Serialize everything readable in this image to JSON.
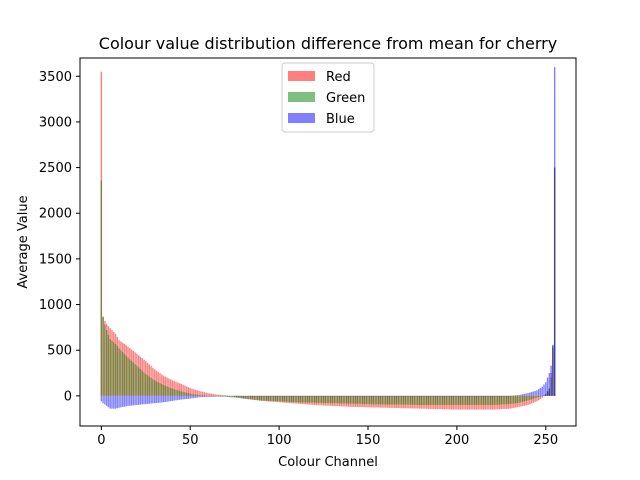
{
  "chart_data": {
    "type": "bar",
    "title": "Colour value distribution difference from mean for cherry",
    "xlabel": "Colour Channel",
    "ylabel": "Average Value",
    "xlim": [
      -12,
      267
    ],
    "ylim": [
      -330,
      3700
    ],
    "xticks": [
      0,
      50,
      100,
      150,
      200,
      250
    ],
    "yticks": [
      0,
      500,
      1000,
      1500,
      2000,
      2500,
      3000,
      3500
    ],
    "grid": false,
    "legend": {
      "placement": "top-center",
      "entries": [
        "Red",
        "Green",
        "Blue"
      ]
    },
    "series": [
      {
        "name": "Red",
        "color": "#ff0000",
        "alpha": 0.5,
        "keyframes": [
          [
            0,
            3550
          ],
          [
            1,
            860
          ],
          [
            2,
            820
          ],
          [
            3,
            790
          ],
          [
            5,
            740
          ],
          [
            8,
            680
          ],
          [
            10,
            610
          ],
          [
            15,
            540
          ],
          [
            20,
            460
          ],
          [
            25,
            380
          ],
          [
            30,
            290
          ],
          [
            35,
            220
          ],
          [
            40,
            170
          ],
          [
            45,
            130
          ],
          [
            50,
            85
          ],
          [
            55,
            55
          ],
          [
            60,
            30
          ],
          [
            65,
            15
          ],
          [
            70,
            5
          ],
          [
            75,
            -10
          ],
          [
            80,
            -30
          ],
          [
            90,
            -55
          ],
          [
            100,
            -70
          ],
          [
            110,
            -85
          ],
          [
            120,
            -100
          ],
          [
            130,
            -110
          ],
          [
            140,
            -120
          ],
          [
            150,
            -125
          ],
          [
            160,
            -130
          ],
          [
            170,
            -135
          ],
          [
            180,
            -140
          ],
          [
            190,
            -145
          ],
          [
            200,
            -150
          ],
          [
            210,
            -150
          ],
          [
            220,
            -150
          ],
          [
            230,
            -140
          ],
          [
            235,
            -120
          ],
          [
            240,
            -100
          ],
          [
            245,
            -60
          ],
          [
            248,
            -20
          ],
          [
            250,
            20
          ],
          [
            252,
            80
          ],
          [
            253,
            250
          ],
          [
            254,
            530
          ],
          [
            255,
            2500
          ]
        ]
      },
      {
        "name": "Green",
        "color": "#008000",
        "alpha": 0.5,
        "keyframes": [
          [
            0,
            2360
          ],
          [
            1,
            870
          ],
          [
            2,
            780
          ],
          [
            3,
            720
          ],
          [
            5,
            620
          ],
          [
            8,
            570
          ],
          [
            10,
            520
          ],
          [
            15,
            420
          ],
          [
            20,
            330
          ],
          [
            25,
            240
          ],
          [
            30,
            170
          ],
          [
            35,
            120
          ],
          [
            40,
            80
          ],
          [
            45,
            50
          ],
          [
            50,
            25
          ],
          [
            55,
            10
          ],
          [
            60,
            0
          ],
          [
            70,
            -10
          ],
          [
            80,
            -30
          ],
          [
            90,
            -50
          ],
          [
            100,
            -60
          ],
          [
            110,
            -70
          ],
          [
            120,
            -75
          ],
          [
            130,
            -80
          ],
          [
            140,
            -85
          ],
          [
            150,
            -90
          ],
          [
            160,
            -95
          ],
          [
            170,
            -95
          ],
          [
            180,
            -100
          ],
          [
            190,
            -100
          ],
          [
            200,
            -100
          ],
          [
            210,
            -100
          ],
          [
            220,
            -100
          ],
          [
            230,
            -90
          ],
          [
            235,
            -75
          ],
          [
            240,
            -50
          ],
          [
            245,
            -20
          ],
          [
            248,
            0
          ],
          [
            250,
            20
          ],
          [
            252,
            80
          ],
          [
            253,
            200
          ],
          [
            254,
            560
          ],
          [
            255,
            2500
          ]
        ]
      },
      {
        "name": "Blue",
        "color": "#0000ff",
        "alpha": 0.5,
        "keyframes": [
          [
            0,
            -60
          ],
          [
            1,
            -80
          ],
          [
            3,
            -110
          ],
          [
            5,
            -140
          ],
          [
            8,
            -140
          ],
          [
            10,
            -130
          ],
          [
            15,
            -110
          ],
          [
            20,
            -100
          ],
          [
            25,
            -90
          ],
          [
            30,
            -80
          ],
          [
            35,
            -70
          ],
          [
            40,
            -55
          ],
          [
            45,
            -40
          ],
          [
            50,
            -30
          ],
          [
            55,
            -15
          ],
          [
            60,
            -10
          ],
          [
            70,
            -5
          ],
          [
            80,
            -5
          ],
          [
            90,
            -5
          ],
          [
            100,
            -5
          ],
          [
            120,
            -5
          ],
          [
            140,
            -5
          ],
          [
            160,
            -5
          ],
          [
            180,
            -5
          ],
          [
            200,
            -5
          ],
          [
            220,
            -5
          ],
          [
            230,
            0
          ],
          [
            235,
            10
          ],
          [
            240,
            30
          ],
          [
            245,
            60
          ],
          [
            248,
            100
          ],
          [
            250,
            150
          ],
          [
            252,
            250
          ],
          [
            253,
            330
          ],
          [
            254,
            550
          ],
          [
            255,
            3600
          ]
        ]
      }
    ]
  }
}
